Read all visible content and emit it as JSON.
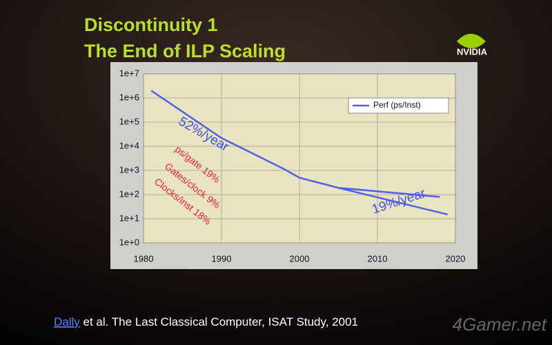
{
  "chart_data": {
    "type": "line",
    "title": "Discontinuity 1",
    "subtitle": "The End of ILP Scaling",
    "logo": "NVIDIA",
    "yscale": "log",
    "xlim": [
      1980,
      2020
    ],
    "xticks": [
      1980,
      1990,
      2000,
      2010,
      2020
    ],
    "ylim": [
      1,
      10000000
    ],
    "yticks": [
      {
        "value": 1,
        "label": "1e+0"
      },
      {
        "value": 10,
        "label": "1e+1"
      },
      {
        "value": 100,
        "label": "1e+2"
      },
      {
        "value": 1000,
        "label": "1e+3"
      },
      {
        "value": 10000,
        "label": "1e+4"
      },
      {
        "value": 100000,
        "label": "1e+5"
      },
      {
        "value": 1000000,
        "label": "1e+6"
      },
      {
        "value": 10000000,
        "label": "1e+7"
      }
    ],
    "grid": true,
    "legend": "upper right",
    "series": [
      {
        "name": "Perf (ps/Inst)",
        "color": "#4f5ff0",
        "x": [
          1981,
          1990,
          1998,
          2000,
          2005,
          2018
        ],
        "values": [
          2000000,
          22000,
          1150,
          500,
          190,
          80
        ]
      },
      {
        "color": "#4f5ff0",
        "x": [
          2005,
          2019
        ],
        "values": [
          190,
          15
        ]
      }
    ],
    "annotations": [
      {
        "text": "52%/year",
        "color": "#3f4fe8"
      },
      {
        "text": "19%/year",
        "color": "#3f4fe8"
      },
      {
        "text": "ps/gate 19%",
        "color": "#e8203a"
      },
      {
        "text": "Gates/clock 9%",
        "color": "#e8203a"
      },
      {
        "text": "Clocks/inst 18%",
        "color": "#e8203a"
      }
    ],
    "footer": {
      "author": "Dally",
      "rest": "et al. The Last Classical Computer, ISAT Study, 2001"
    },
    "watermark": "4Gamer.net"
  }
}
